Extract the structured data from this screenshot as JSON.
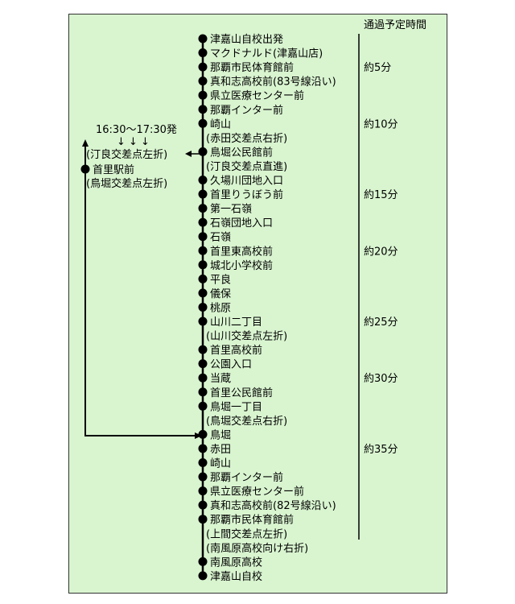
{
  "header": "通過予定時間",
  "departure_time": "16:30～17:30発",
  "down_arrows": "↓ ↓ ↓",
  "branch": {
    "upper_note": "(汀良交差点左折)",
    "station": "首里駅前",
    "lower_note": "(鳥堀交差点左折)"
  },
  "stops": [
    {
      "label": "津嘉山自校出発",
      "dot": true
    },
    {
      "label": "マクドナルド(津嘉山店)",
      "dot": true
    },
    {
      "label": "那覇市民体育館前",
      "dot": true
    },
    {
      "label": "真和志高校前(83号線沿い)",
      "dot": true
    },
    {
      "label": "県立医療センター前",
      "dot": true
    },
    {
      "label": "那覇インター前",
      "dot": true
    },
    {
      "label": "崎山",
      "dot": true
    },
    {
      "label": "(赤田交差点右折)",
      "dot": false
    },
    {
      "label": "鳥堀公民館前",
      "dot": true
    },
    {
      "label": "(汀良交差点直進)",
      "dot": false
    },
    {
      "label": "久場川団地入口",
      "dot": true
    },
    {
      "label": "首里りうぼう前",
      "dot": true
    },
    {
      "label": "第一石嶺",
      "dot": true
    },
    {
      "label": "石嶺団地入口",
      "dot": true
    },
    {
      "label": "石嶺",
      "dot": true
    },
    {
      "label": "首里東高校前",
      "dot": true
    },
    {
      "label": "城北小学校前",
      "dot": true
    },
    {
      "label": "平良",
      "dot": true
    },
    {
      "label": "儀保",
      "dot": true
    },
    {
      "label": "桃原",
      "dot": true
    },
    {
      "label": "山川二丁目",
      "dot": true
    },
    {
      "label": "(山川交差点左折)",
      "dot": false
    },
    {
      "label": "首里高校前",
      "dot": true
    },
    {
      "label": "公園入口",
      "dot": true
    },
    {
      "label": "当蔵",
      "dot": true
    },
    {
      "label": "首里公民館前",
      "dot": true
    },
    {
      "label": "鳥堀一丁目",
      "dot": true
    },
    {
      "label": "(鳥堀交差点右折)",
      "dot": false
    },
    {
      "label": "鳥堀",
      "dot": true
    },
    {
      "label": "赤田",
      "dot": true
    },
    {
      "label": "崎山",
      "dot": true
    },
    {
      "label": "那覇インター前",
      "dot": true
    },
    {
      "label": "県立医療センター前",
      "dot": true
    },
    {
      "label": "真和志高校前(82号線沿い)",
      "dot": true
    },
    {
      "label": "那覇市民体育館前",
      "dot": true
    },
    {
      "label": "(上間交差点左折)",
      "dot": false
    },
    {
      "label": "(南風原高校向け右折)",
      "dot": false
    },
    {
      "label": "南風原高校",
      "dot": true
    },
    {
      "label": "津嘉山自校",
      "dot": true
    }
  ],
  "times": [
    {
      "label": "約5分",
      "at_stop": 2
    },
    {
      "label": "約10分",
      "at_stop": 6
    },
    {
      "label": "約15分",
      "at_stop": 11
    },
    {
      "label": "約20分",
      "at_stop": 15
    },
    {
      "label": "約25分",
      "at_stop": 20
    },
    {
      "label": "約30分",
      "at_stop": 24
    },
    {
      "label": "約35分",
      "at_stop": 29
    }
  ]
}
